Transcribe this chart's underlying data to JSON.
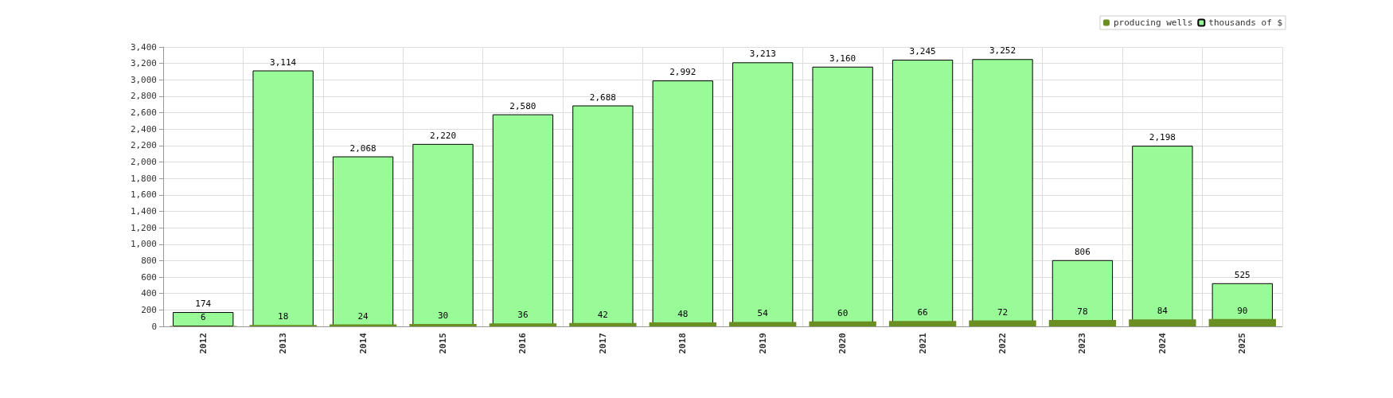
{
  "chart_data": {
    "type": "bar",
    "categories": [
      "2012",
      "2013",
      "2014",
      "2015",
      "2016",
      "2017",
      "2018",
      "2019",
      "2020",
      "2021",
      "2022",
      "2023",
      "2024",
      "2025"
    ],
    "series": [
      {
        "name": "producing wells",
        "color": "#6b8e23",
        "values": [
          6,
          18,
          24,
          30,
          36,
          42,
          48,
          54,
          60,
          66,
          72,
          78,
          84,
          90
        ],
        "value_labels": [
          "6",
          "18",
          "24",
          "30",
          "36",
          "42",
          "48",
          "54",
          "60",
          "66",
          "72",
          "78",
          "84",
          "90"
        ]
      },
      {
        "name": "thousands of $",
        "color": "#98fb98",
        "values": [
          174,
          3114,
          2068,
          2220,
          2580,
          2688,
          2992,
          3213,
          3160,
          3245,
          3252,
          806,
          2198,
          525
        ],
        "value_labels": [
          "174",
          "3,114",
          "2,068",
          "2,220",
          "2,580",
          "2,688",
          "2,992",
          "3,213",
          "3,160",
          "3,245",
          "3,252",
          "806",
          "2,198",
          "525"
        ]
      }
    ],
    "ylim": [
      0,
      3400
    ],
    "yticks": [
      0,
      200,
      400,
      600,
      800,
      {
        "value": 1000,
        "label": "1,000"
      },
      {
        "value": 1200,
        "label": "1,200"
      },
      {
        "value": 1400,
        "label": "1,400"
      },
      {
        "value": 1600,
        "label": "1,600"
      },
      {
        "value": 1800,
        "label": "1,800"
      },
      {
        "value": 2000,
        "label": "2,000"
      },
      {
        "value": 2200,
        "label": "2,200"
      },
      {
        "value": 2400,
        "label": "2,400"
      },
      {
        "value": 2600,
        "label": "2,600"
      },
      {
        "value": 2800,
        "label": "2,800"
      },
      {
        "value": 3000,
        "label": "3,000"
      },
      {
        "value": 3200,
        "label": "3,200"
      },
      {
        "value": 3400,
        "label": "3,400"
      }
    ],
    "grid": true,
    "legend": "top right"
  }
}
